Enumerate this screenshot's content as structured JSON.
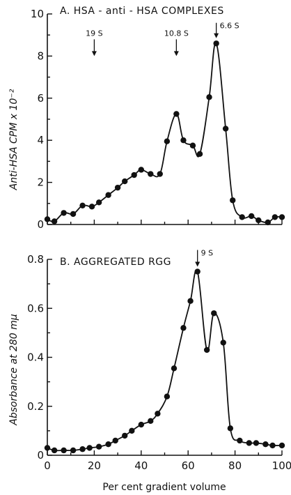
{
  "chart_data": [
    {
      "type": "line",
      "title": "A. HSA - anti - HSA COMPLEXES",
      "ylabel": "Anti-HSA CPM x 10⁻²",
      "xlim": [
        0,
        100
      ],
      "ylim": [
        0,
        10
      ],
      "yticks": [
        0,
        2,
        4,
        6,
        8,
        10
      ],
      "ytick_labels": [
        "0",
        "2",
        "4",
        "6",
        "8",
        "10"
      ],
      "markers": [
        {
          "label": "19 S",
          "x": 20
        },
        {
          "label": "10.8 S",
          "x": 55
        },
        {
          "label": "6.6 S",
          "x": 72
        }
      ],
      "series": [
        {
          "x": [
            0,
            3,
            7,
            11,
            15,
            19,
            22,
            26,
            30,
            33,
            37,
            40,
            44,
            48,
            51,
            55,
            58,
            62,
            65,
            69,
            72,
            76,
            79,
            83,
            87,
            90,
            94,
            97,
            100
          ],
          "y": [
            0.25,
            0.15,
            0.55,
            0.5,
            0.9,
            0.85,
            1.05,
            1.4,
            1.75,
            2.05,
            2.35,
            2.6,
            2.4,
            2.4,
            3.95,
            5.25,
            4.0,
            3.75,
            3.35,
            6.05,
            8.6,
            4.55,
            1.15,
            0.35,
            0.4,
            0.2,
            0.1,
            0.35,
            0.35
          ]
        }
      ]
    },
    {
      "type": "line",
      "title": "B. AGGREGATED RGG",
      "ylabel": "Absorbance at 280 mμ",
      "xlabel": "Per cent  gradient  volume",
      "xlim": [
        0,
        100
      ],
      "ylim": [
        0,
        0.8
      ],
      "xticks": [
        0,
        20,
        40,
        60,
        80,
        100
      ],
      "xtick_labels": [
        "0",
        "20",
        "40",
        "60",
        "80",
        "100"
      ],
      "yticks": [
        0,
        0.2,
        0.4,
        0.6,
        0.8
      ],
      "ytick_labels": [
        "0",
        "0.2",
        "0.4",
        "0.6",
        "0.8"
      ],
      "markers": [
        {
          "label": "9 S",
          "x": 64
        }
      ],
      "series": [
        {
          "x": [
            0,
            3,
            7,
            11,
            15,
            18,
            22,
            26,
            29,
            33,
            36,
            40,
            44,
            47,
            51,
            54,
            58,
            61,
            64,
            68,
            71,
            75,
            78,
            82,
            86,
            89,
            93,
            96,
            100
          ],
          "y": [
            0.03,
            0.02,
            0.02,
            0.02,
            0.025,
            0.03,
            0.035,
            0.045,
            0.06,
            0.08,
            0.1,
            0.125,
            0.14,
            0.17,
            0.24,
            0.355,
            0.52,
            0.63,
            0.75,
            0.43,
            0.58,
            0.46,
            0.11,
            0.06,
            0.05,
            0.05,
            0.045,
            0.04,
            0.04
          ]
        }
      ]
    }
  ]
}
